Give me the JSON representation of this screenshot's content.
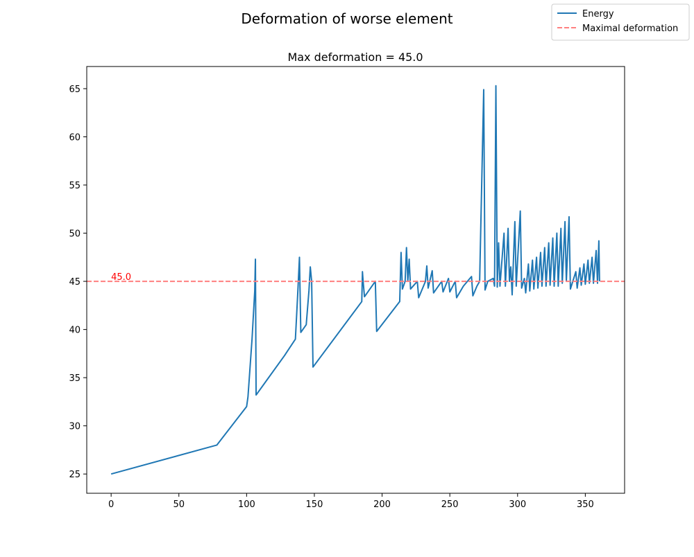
{
  "chart_data": {
    "type": "line",
    "title": "Deformation of worse element",
    "subtitle": "Max deformation = 45.0",
    "x": [
      0,
      78,
      100,
      101,
      102,
      103,
      104,
      105,
      106,
      106.5,
      107,
      128,
      136,
      137,
      138,
      139,
      140,
      144,
      146,
      147,
      148,
      149,
      185,
      185.5,
      186,
      187,
      195,
      196,
      213,
      214,
      215,
      217,
      218,
      219,
      220,
      221,
      226,
      227,
      232,
      233,
      234,
      237,
      238,
      244,
      245,
      249,
      250,
      254,
      255,
      260,
      266,
      267,
      270,
      272,
      275,
      276,
      278,
      282,
      283,
      284,
      285,
      286,
      287,
      290,
      291,
      293,
      294,
      295,
      296,
      298,
      299,
      302,
      303,
      305,
      306,
      308,
      309,
      311,
      312,
      314,
      315,
      317,
      318,
      320,
      321,
      323,
      324,
      326,
      327,
      329,
      330,
      332,
      333,
      335,
      336,
      338,
      339,
      343,
      344,
      346,
      347,
      349,
      350,
      352,
      353,
      355,
      356,
      358,
      359,
      360,
      360.5
    ],
    "series": [
      {
        "name": "Energy",
        "color": "#1f77b4",
        "values": [
          25,
          28,
          32,
          33,
          35,
          37,
          39,
          41.5,
          44,
          47.3,
          33.2,
          37.3,
          39,
          41.7,
          44.5,
          47.5,
          39.7,
          40.5,
          44,
          46.5,
          45,
          36.1,
          42.9,
          46,
          45,
          43.4,
          45,
          39.8,
          42.9,
          48,
          44.2,
          45,
          48.5,
          45,
          47.3,
          44.2,
          45,
          43.3,
          45,
          46.6,
          44.3,
          46.1,
          43.8,
          45,
          43.9,
          45.3,
          43.9,
          45,
          43.3,
          44.5,
          45.5,
          43.5,
          44.5,
          45,
          64.9,
          44.1,
          45,
          45.3,
          44.5,
          65.3,
          44.4,
          49,
          44.5,
          50,
          44.5,
          50.5,
          45,
          46.5,
          43.6,
          51.2,
          44.5,
          52.3,
          44.3,
          45.3,
          43.8,
          46.8,
          44,
          47.2,
          44.2,
          47.5,
          44.3,
          48,
          44.5,
          48.5,
          44.5,
          49,
          44.6,
          49.5,
          44.5,
          50,
          44.5,
          50.5,
          44.8,
          51.2,
          45,
          51.7,
          44.2,
          46,
          44.3,
          46.4,
          44.6,
          46.8,
          44.7,
          47.2,
          44.8,
          47.5,
          44.8,
          48.2,
          44.8,
          49.2,
          45
        ]
      }
    ],
    "reference_lines": [
      {
        "name": "Maximal deformation",
        "value": 45.0,
        "color": "#ff7f7f"
      }
    ],
    "annotations": [
      {
        "text": "45.0",
        "x": 0,
        "y": 45,
        "color": "#ff0000"
      }
    ],
    "xlim": [
      -18,
      379
    ],
    "ylim": [
      23,
      67.3
    ],
    "xticks": [
      0,
      50,
      100,
      150,
      200,
      250,
      300,
      350
    ],
    "yticks": [
      25,
      30,
      35,
      40,
      45,
      50,
      55,
      60,
      65
    ],
    "legend": "upper right"
  }
}
